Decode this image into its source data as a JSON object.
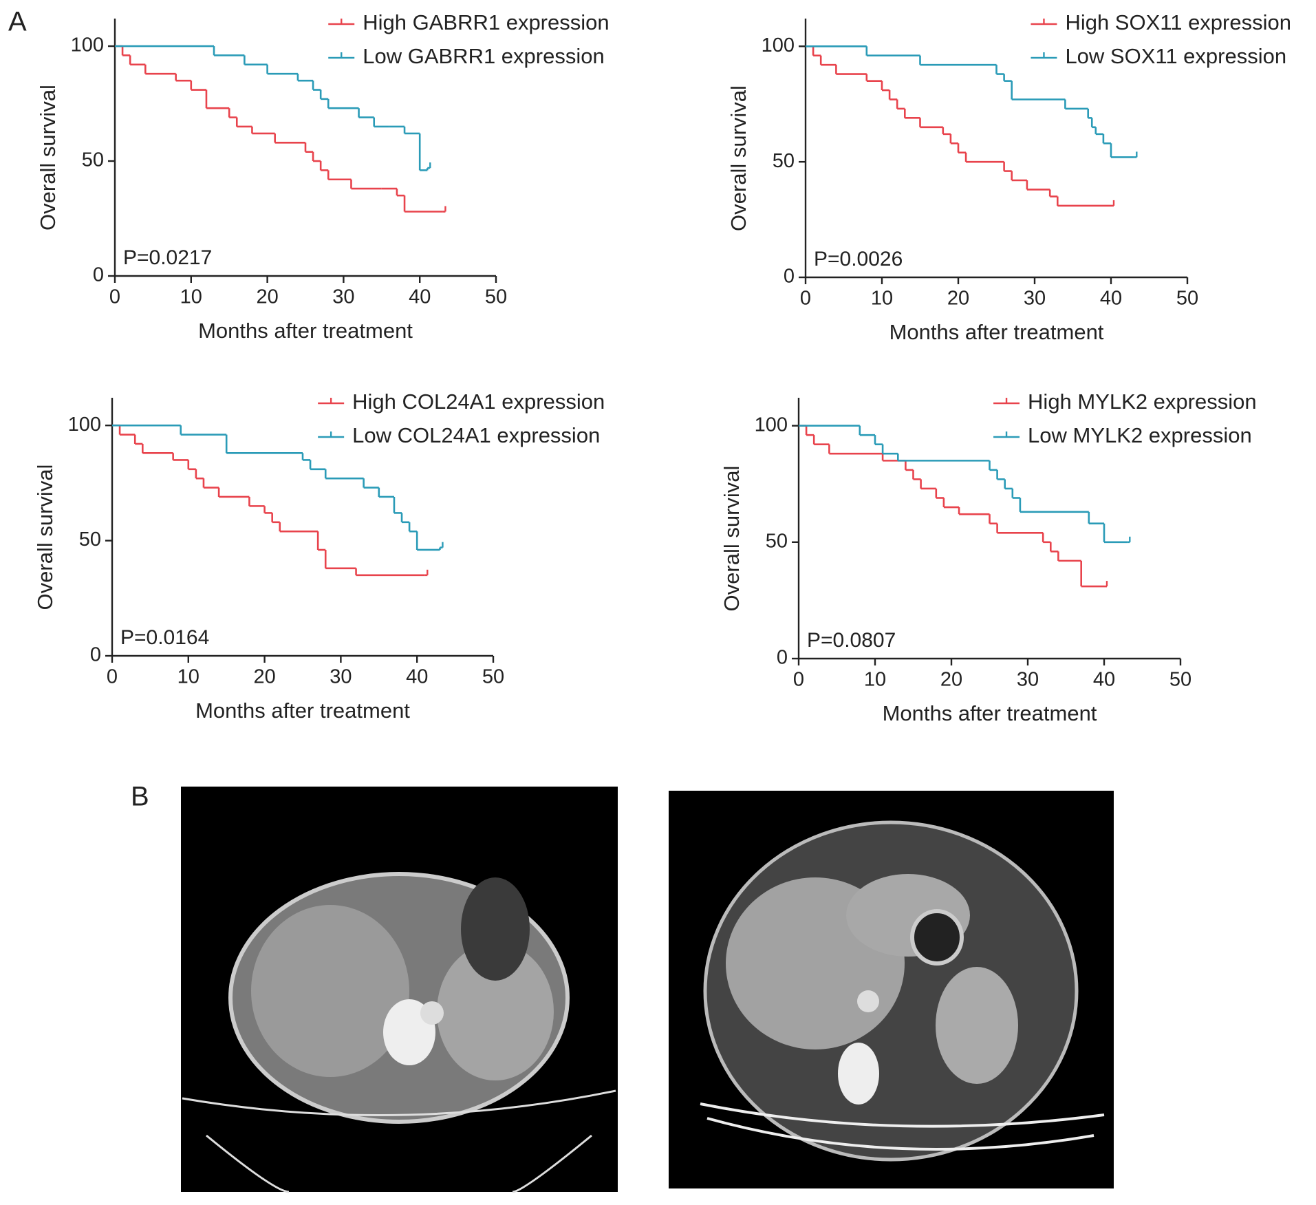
{
  "panel_labels": [
    "A",
    "B"
  ],
  "chart_data": [
    {
      "type": "line",
      "step": true,
      "annotation": "P=0.0217",
      "xlabel": "Months after treatment",
      "ylabel": "Overall survival",
      "xlim": [
        0,
        50
      ],
      "xticks": [
        0,
        10,
        20,
        30,
        40,
        50
      ],
      "ylim": [
        0,
        112
      ],
      "yticks": [
        0,
        50,
        100
      ],
      "legend": "upper right",
      "series": [
        {
          "name": "High GABRR1 expression",
          "color": "#e8434c",
          "x": [
            0,
            1,
            2,
            4,
            8,
            10,
            12,
            15,
            16,
            18,
            21,
            25,
            26,
            27,
            28,
            31,
            35,
            37,
            38,
            43
          ],
          "values": [
            100,
            96,
            92,
            88,
            85,
            81,
            73,
            69,
            65,
            62,
            58,
            54,
            50,
            46,
            42,
            38,
            38,
            35,
            28,
            28
          ]
        },
        {
          "name": "Low GABRR1 expression",
          "color": "#2a9bb7",
          "x": [
            0,
            13,
            17,
            20,
            24,
            26,
            27,
            28,
            32,
            34,
            36,
            38,
            40,
            41
          ],
          "values": [
            100,
            96,
            92,
            88,
            85,
            81,
            77,
            73,
            69,
            65,
            65,
            62,
            46,
            47
          ]
        }
      ]
    },
    {
      "type": "line",
      "step": true,
      "annotation": "P=0.0026",
      "xlabel": "Months after treatment",
      "ylabel": "Overall survival",
      "xlim": [
        0,
        50
      ],
      "xticks": [
        0,
        10,
        20,
        30,
        40,
        50
      ],
      "ylim": [
        0,
        112
      ],
      "yticks": [
        0,
        50,
        100
      ],
      "legend": "upper right",
      "series": [
        {
          "name": "High SOX11 expression",
          "color": "#e8434c",
          "x": [
            0,
            1,
            2,
            4,
            8,
            10,
            11,
            12,
            13,
            15,
            18,
            19,
            20,
            21,
            26,
            27,
            29,
            32,
            33,
            40
          ],
          "values": [
            100,
            96,
            92,
            88,
            85,
            81,
            77,
            73,
            69,
            65,
            62,
            58,
            54,
            50,
            46,
            42,
            38,
            35,
            31,
            31
          ]
        },
        {
          "name": "Low SOX11 expression",
          "color": "#2a9bb7",
          "x": [
            0,
            8,
            15,
            25,
            26,
            27,
            34,
            37,
            37.5,
            38,
            39,
            40,
            43
          ],
          "values": [
            100,
            96,
            92,
            88,
            85,
            77,
            73,
            69,
            65,
            62,
            58,
            52,
            52
          ]
        }
      ]
    },
    {
      "type": "line",
      "step": true,
      "annotation": "P=0.0164",
      "xlabel": "Months after treatment",
      "ylabel": "Overall survival",
      "xlim": [
        0,
        50
      ],
      "xticks": [
        0,
        10,
        20,
        30,
        40,
        50
      ],
      "ylim": [
        0,
        112
      ],
      "yticks": [
        0,
        50,
        100
      ],
      "legend": "upper right",
      "series": [
        {
          "name": "High COL24A1 expression",
          "color": "#e8434c",
          "x": [
            0,
            1,
            3,
            4,
            8,
            10,
            11,
            12,
            14,
            18,
            20,
            21,
            22,
            27,
            28,
            32,
            41
          ],
          "values": [
            100,
            96,
            92,
            88,
            85,
            81,
            77,
            73,
            69,
            65,
            62,
            58,
            54,
            46,
            38,
            35,
            35
          ]
        },
        {
          "name": "Low COL24A1 expression",
          "color": "#2a9bb7",
          "x": [
            0,
            9,
            15,
            25,
            26,
            28,
            33,
            35,
            37,
            38,
            39,
            40,
            43
          ],
          "values": [
            100,
            96,
            88,
            85,
            81,
            77,
            73,
            69,
            62,
            58,
            54,
            46,
            47
          ]
        }
      ]
    },
    {
      "type": "line",
      "step": true,
      "annotation": "P=0.0807",
      "xlabel": "Months after treatment",
      "ylabel": "Overall survival",
      "xlim": [
        0,
        50
      ],
      "xticks": [
        0,
        10,
        20,
        30,
        40,
        50
      ],
      "ylim": [
        0,
        112
      ],
      "yticks": [
        0,
        50,
        100
      ],
      "legend": "upper right",
      "series": [
        {
          "name": "High MYLK2 expression",
          "color": "#e8434c",
          "x": [
            0,
            1,
            2,
            4,
            11,
            14,
            15,
            16,
            18,
            19,
            21,
            25,
            26,
            32,
            33,
            34,
            37,
            40
          ],
          "values": [
            100,
            96,
            92,
            88,
            85,
            81,
            77,
            73,
            69,
            65,
            62,
            58,
            54,
            50,
            46,
            42,
            31,
            31
          ]
        },
        {
          "name": "Low MYLK2 expression",
          "color": "#2a9bb7",
          "x": [
            0,
            8,
            10,
            11,
            13,
            25,
            26,
            27,
            28,
            29,
            38,
            40,
            43
          ],
          "values": [
            100,
            96,
            92,
            88,
            85,
            81,
            77,
            73,
            69,
            63,
            58,
            50,
            50
          ]
        }
      ]
    }
  ]
}
